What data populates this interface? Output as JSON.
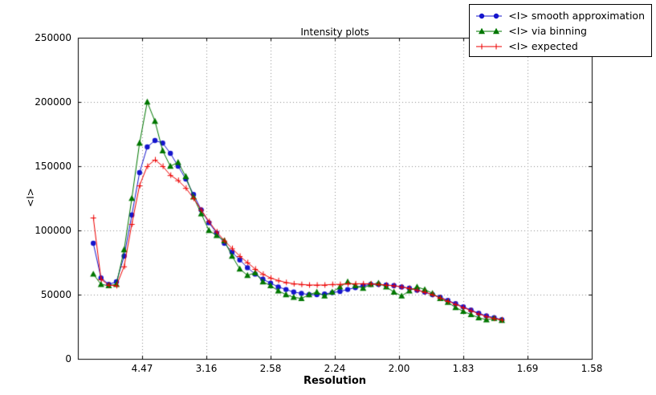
{
  "figure": {
    "title": "Intensity plots"
  },
  "chart_data": {
    "type": "line",
    "title": "Intensity plots",
    "xlabel": "Resolution",
    "ylabel": "<I>",
    "grid": true,
    "legend_position": "top-right",
    "x_axis_note": "x positions are linear in 1/d^2; tick labels give resolution d in Angstrom",
    "xlim": [
      0,
      0.4
    ],
    "ylim": [
      0,
      250000
    ],
    "x_ticks": [
      {
        "pos": 0.05,
        "label": "4.47"
      },
      {
        "pos": 0.1,
        "label": "3.16"
      },
      {
        "pos": 0.15,
        "label": "2.58"
      },
      {
        "pos": 0.2,
        "label": "2.24"
      },
      {
        "pos": 0.25,
        "label": "2.00"
      },
      {
        "pos": 0.3,
        "label": "1.83"
      },
      {
        "pos": 0.35,
        "label": "1.69"
      },
      {
        "pos": 0.4,
        "label": "1.58"
      }
    ],
    "y_ticks": [
      {
        "pos": 0,
        "label": "0"
      },
      {
        "pos": 50000,
        "label": "50000"
      },
      {
        "pos": 100000,
        "label": "100000"
      },
      {
        "pos": 150000,
        "label": "150000"
      },
      {
        "pos": 200000,
        "label": "200000"
      },
      {
        "pos": 250000,
        "label": "250000"
      }
    ],
    "x": [
      0.012,
      0.018,
      0.024,
      0.03,
      0.036,
      0.042,
      0.048,
      0.054,
      0.06,
      0.066,
      0.072,
      0.078,
      0.084,
      0.09,
      0.096,
      0.102,
      0.108,
      0.114,
      0.12,
      0.126,
      0.132,
      0.138,
      0.144,
      0.15,
      0.156,
      0.162,
      0.168,
      0.174,
      0.18,
      0.186,
      0.192,
      0.198,
      0.204,
      0.21,
      0.216,
      0.222,
      0.228,
      0.234,
      0.24,
      0.246,
      0.252,
      0.258,
      0.264,
      0.27,
      0.276,
      0.282,
      0.288,
      0.294,
      0.3,
      0.306,
      0.312,
      0.318,
      0.324,
      0.33
    ],
    "series": [
      {
        "name": "<I> smooth approximation",
        "color": "#1515cd",
        "marker": "circle",
        "values": [
          90000,
          63000,
          58000,
          60000,
          80000,
          112000,
          145000,
          165000,
          170000,
          168000,
          160000,
          150000,
          140000,
          128000,
          116000,
          106000,
          98000,
          90000,
          83000,
          77000,
          71000,
          66000,
          62000,
          59000,
          56000,
          54000,
          52000,
          51000,
          50000,
          50000,
          50500,
          51500,
          52500,
          54000,
          55500,
          57000,
          58000,
          58000,
          57500,
          57000,
          56000,
          55000,
          53500,
          52000,
          50000,
          48000,
          45500,
          43000,
          40500,
          38000,
          35500,
          33500,
          32000,
          30500
        ]
      },
      {
        "name": "<I> via binning",
        "color": "#007700",
        "marker": "triangle",
        "values": [
          66000,
          58000,
          57000,
          58000,
          85000,
          125000,
          168000,
          200000,
          185000,
          162000,
          150000,
          153000,
          142000,
          126000,
          113000,
          100000,
          96000,
          92000,
          80000,
          70000,
          65000,
          67000,
          60000,
          57000,
          53000,
          50000,
          48000,
          47000,
          50000,
          52000,
          49000,
          52000,
          56000,
          60000,
          57000,
          55000,
          58000,
          59000,
          56000,
          52000,
          49000,
          53000,
          56000,
          54000,
          51000,
          47000,
          44000,
          40000,
          37000,
          34500,
          32000,
          30500,
          31500,
          30000
        ]
      },
      {
        "name": "<I> expected",
        "color": "#ee0000",
        "marker": "plus",
        "values": [
          110000,
          62000,
          57500,
          57000,
          72000,
          105000,
          135000,
          150000,
          155000,
          150000,
          143000,
          139000,
          133000,
          125000,
          116000,
          107000,
          99000,
          92000,
          86000,
          80000,
          75000,
          70000,
          66000,
          63000,
          61000,
          59500,
          58500,
          58000,
          57500,
          57500,
          57500,
          58000,
          58000,
          58500,
          58500,
          58500,
          58500,
          58000,
          57500,
          57000,
          56000,
          55000,
          53500,
          52000,
          50000,
          47500,
          45000,
          42500,
          40000,
          37500,
          35000,
          33000,
          31500,
          30500
        ]
      }
    ]
  }
}
